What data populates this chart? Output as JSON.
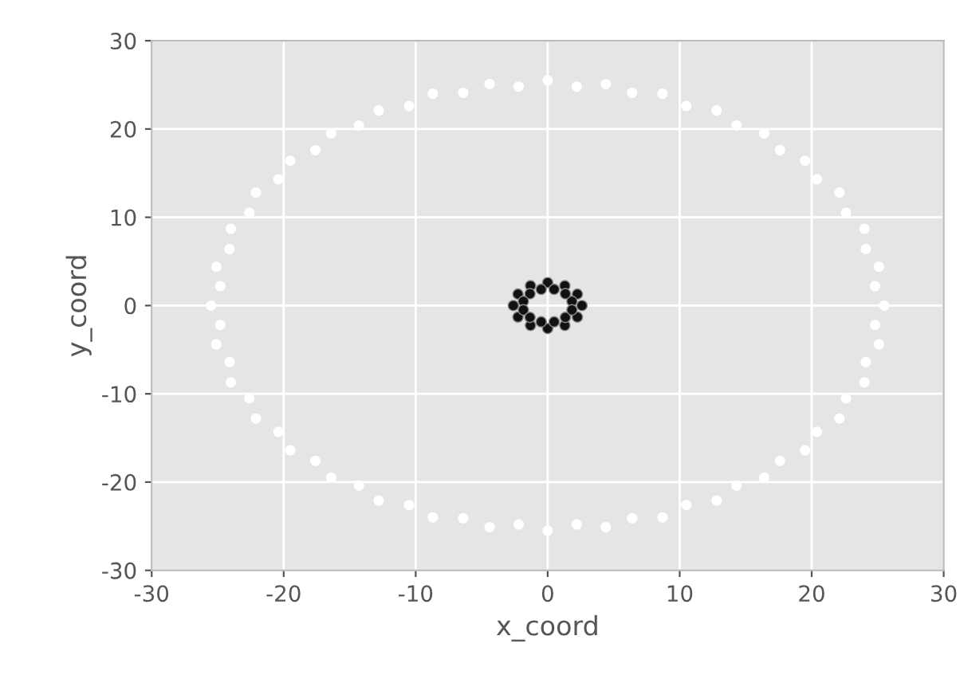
{
  "chart_data": {
    "type": "scatter",
    "xlabel": "x_coord",
    "ylabel": "y_coord",
    "xlim": [
      -30,
      30
    ],
    "ylim": [
      -30,
      30
    ],
    "xticks": [
      -30,
      -20,
      -10,
      0,
      10,
      20,
      30
    ],
    "yticks": [
      -30,
      -20,
      -10,
      0,
      10,
      20,
      30
    ],
    "grid": true,
    "marker": "circle",
    "series": [
      {
        "color": "#ffffff",
        "x": [
          25.5,
          24.8,
          25.1,
          24.1,
          24.0,
          22.6,
          22.1,
          20.4,
          19.5,
          17.6,
          16.4,
          14.3,
          12.8,
          10.5,
          8.7,
          6.4,
          4.4,
          2.2,
          0,
          -2.2,
          -4.4,
          -6.4,
          -8.7,
          -10.5,
          -12.8,
          -14.3,
          -16.4,
          -17.6,
          -19.5,
          -20.4,
          -22.1,
          -22.6,
          -24.0,
          -24.1,
          -25.1,
          -24.8,
          -25.5,
          -24.8,
          -25.1,
          -24.1,
          -24.0,
          -22.6,
          -22.1,
          -20.4,
          -19.5,
          -17.6,
          -16.4,
          -14.3,
          -12.8,
          -10.5,
          -8.7,
          -6.4,
          -4.4,
          -2.2,
          0,
          2.2,
          4.4,
          6.4,
          8.7,
          10.5,
          12.8,
          14.3,
          16.4,
          17.6,
          19.5,
          20.4,
          22.1,
          22.6,
          24.0,
          24.1,
          25.1,
          24.8
        ],
        "values": [
          0,
          2.2,
          4.4,
          6.4,
          8.7,
          10.5,
          12.8,
          14.3,
          16.4,
          17.6,
          19.5,
          20.4,
          22.1,
          22.6,
          24.0,
          24.1,
          25.1,
          24.8,
          25.5,
          24.8,
          25.1,
          24.1,
          24.0,
          22.6,
          22.1,
          20.4,
          19.5,
          17.6,
          16.4,
          14.3,
          12.8,
          10.5,
          8.7,
          6.4,
          4.4,
          2.2,
          0,
          -2.2,
          -4.4,
          -6.4,
          -8.7,
          -10.5,
          -12.8,
          -14.3,
          -16.4,
          -17.6,
          -19.5,
          -20.4,
          -22.1,
          -22.6,
          -24.0,
          -24.1,
          -25.1,
          -24.8,
          -25.5,
          -24.8,
          -25.1,
          -24.1,
          -24.0,
          -22.6,
          -22.1,
          -20.4,
          -19.5,
          -17.6,
          -16.4,
          -14.3,
          -12.8,
          -10.5,
          -8.7,
          -6.4,
          -4.4,
          -2.2
        ]
      },
      {
        "color": "#111111",
        "x": [
          2.6,
          2.25,
          1.3,
          0,
          -1.3,
          -2.25,
          -2.6,
          -2.25,
          -1.3,
          0,
          1.3,
          2.25,
          1.84,
          1.34,
          0.49,
          -0.49,
          -1.34,
          -1.84,
          -1.84,
          -1.34,
          -0.49,
          0.49,
          1.34,
          1.84
        ],
        "values": [
          0,
          1.3,
          2.25,
          2.6,
          2.25,
          1.3,
          0,
          -1.3,
          -2.25,
          -2.6,
          -2.25,
          -1.3,
          0.49,
          1.34,
          1.84,
          1.84,
          1.34,
          0.49,
          -0.49,
          -1.34,
          -1.84,
          -1.84,
          -1.34,
          -0.49
        ]
      }
    ]
  }
}
